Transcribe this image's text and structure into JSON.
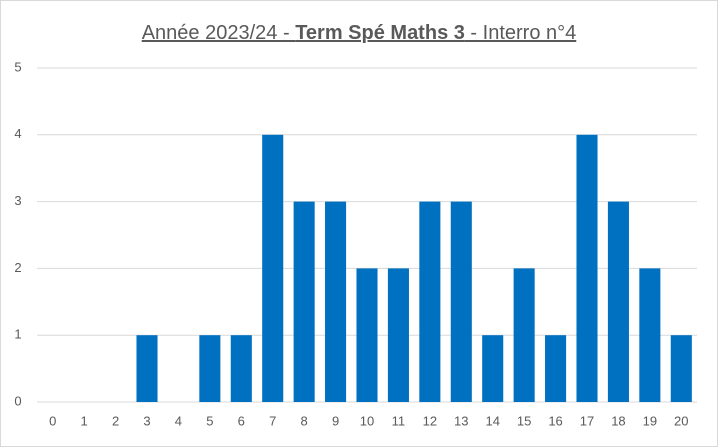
{
  "chart_data": {
    "type": "bar",
    "title": [
      "Année 2023/24 - ",
      "Term Spé Maths 3",
      " - Interro n°4"
    ],
    "categories": [
      "0",
      "1",
      "2",
      "3",
      "4",
      "5",
      "6",
      "7",
      "8",
      "9",
      "10",
      "11",
      "12",
      "13",
      "14",
      "15",
      "16",
      "17",
      "18",
      "19",
      "20"
    ],
    "values": [
      0,
      0,
      0,
      1,
      0,
      1,
      1,
      4,
      3,
      3,
      2,
      2,
      3,
      3,
      1,
      2,
      1,
      4,
      3,
      2,
      1
    ],
    "color": "#0070c0",
    "ylim": [
      0,
      5
    ],
    "yticks": [
      0,
      1,
      2,
      3,
      4,
      5
    ],
    "grid": true
  }
}
